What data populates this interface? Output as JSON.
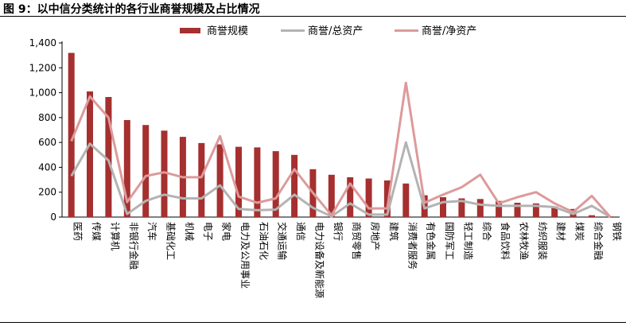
{
  "title": "图 9：以中信分类统计的各行业商誉规模及占比情况",
  "colors": {
    "bar": "#a5302f",
    "ratio_assets": "#b3b3b3",
    "ratio_equity": "#dd9a9b",
    "axis": "#000000"
  },
  "chart_data": {
    "type": "bar",
    "title": "",
    "xlabel": "",
    "ylabel": "",
    "ylim": [
      0,
      1400
    ],
    "yticks": [
      "0",
      "200",
      "400",
      "600",
      "800",
      "1,000",
      "1,200",
      "1,400"
    ],
    "legend_position": "top-center",
    "grid": false,
    "categories": [
      "医药",
      "传媒",
      "计算机",
      "非银行金融",
      "汽车",
      "基础化工",
      "机械",
      "电子",
      "家电",
      "电力及公用事业",
      "石油石化",
      "交通运输",
      "通信",
      "电力设备及新能源",
      "银行",
      "商贸零售",
      "房地产",
      "建筑",
      "消费者服务",
      "有色金属",
      "国防军工",
      "轻工制造",
      "综合",
      "食品饮料",
      "农林牧渔",
      "纺织服装",
      "建材",
      "煤炭",
      "综合金融",
      "钢铁"
    ],
    "series": [
      {
        "name": "商誉规模",
        "kind": "bar",
        "values": [
          1320,
          1010,
          965,
          780,
          740,
          695,
          645,
          595,
          585,
          565,
          560,
          530,
          500,
          385,
          340,
          320,
          310,
          295,
          270,
          175,
          160,
          150,
          145,
          130,
          115,
          110,
          85,
          65,
          15,
          5
        ]
      },
      {
        "name": "商誉/总资产",
        "kind": "line",
        "values": [
          330,
          590,
          455,
          25,
          130,
          180,
          150,
          150,
          255,
          65,
          55,
          60,
          180,
          75,
          5,
          110,
          20,
          20,
          600,
          70,
          120,
          130,
          100,
          90,
          90,
          90,
          80,
          25,
          90,
          0
        ]
      },
      {
        "name": "商誉/净资产",
        "kind": "line",
        "values": [
          610,
          970,
          800,
          120,
          330,
          360,
          320,
          320,
          650,
          165,
          115,
          150,
          385,
          195,
          15,
          270,
          70,
          70,
          1080,
          115,
          180,
          240,
          340,
          110,
          160,
          200,
          110,
          40,
          170,
          0
        ]
      }
    ]
  }
}
